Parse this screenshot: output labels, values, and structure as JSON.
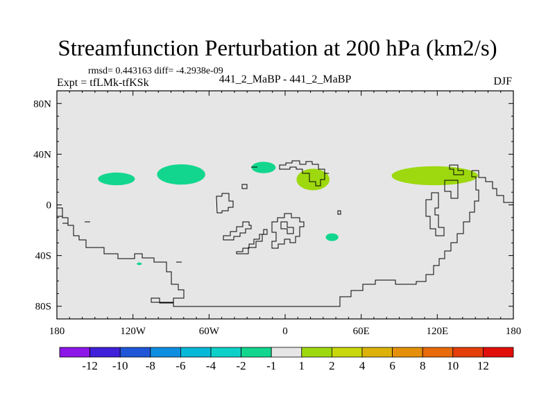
{
  "header": {
    "title": "Streamfunction Perturbation at 200 hPa (km2/s)",
    "stats": "rmsd= 0.443163 diff= -4.2938e-09",
    "expt": "Expt = tfLMk-tfKSk",
    "case": "441_2_MaBP - 441_2_MaBP",
    "season": "DJF"
  },
  "chart_data": {
    "type": "heatmap",
    "title": "Streamfunction Perturbation at 200 hPa (km2/s)",
    "units": "km2/s",
    "xlabel": "",
    "ylabel": "",
    "xlim": [
      -180,
      180
    ],
    "ylim": [
      -90,
      90
    ],
    "x_ticks": [
      {
        "value": -180,
        "label": "180"
      },
      {
        "value": -120,
        "label": "120W"
      },
      {
        "value": -60,
        "label": "60W"
      },
      {
        "value": 0,
        "label": "0"
      },
      {
        "value": 60,
        "label": "60E"
      },
      {
        "value": 120,
        "label": "120E"
      },
      {
        "value": 180,
        "label": "180"
      }
    ],
    "y_ticks": [
      {
        "value": 80,
        "label": "80N"
      },
      {
        "value": 40,
        "label": "40N"
      },
      {
        "value": 0,
        "label": "0"
      },
      {
        "value": -40,
        "label": "40S"
      },
      {
        "value": -80,
        "label": "80S"
      }
    ],
    "background": {
      "range": "-1 to 1",
      "color": "#e6e6e6"
    },
    "anomalies": [
      {
        "name": "north-pacific-low",
        "lon": -133,
        "lat": 20.5,
        "half_width_lon": 14.5,
        "half_height_lat": 5,
        "bin": "-2 to -1",
        "color": "#12d68d"
      },
      {
        "name": "north-america-low",
        "lon": -82,
        "lat": 24,
        "half_width_lon": 19,
        "half_height_lat": 8,
        "bin": "-2 to -1",
        "color": "#12d68d"
      },
      {
        "name": "north-atlantic-low",
        "lon": -17,
        "lat": 29.5,
        "half_width_lon": 9.5,
        "half_height_lat": 4.5,
        "bin": "-2 to -1",
        "color": "#12d68d"
      },
      {
        "name": "south-indian-low",
        "lon": 37,
        "lat": -25.5,
        "half_width_lon": 5,
        "half_height_lat": 3,
        "bin": "-2 to -1",
        "color": "#12d68d"
      },
      {
        "name": "south-pacific-low",
        "lon": -115,
        "lat": -46.5,
        "half_width_lon": 2,
        "half_height_lat": 1,
        "bin": "-2 to -1",
        "color": "#12d68d"
      },
      {
        "name": "north-africa-high",
        "lon": 22,
        "lat": 20,
        "half_width_lon": 13,
        "half_height_lat": 8.5,
        "bin": "1 to 2",
        "color": "#9ed80f"
      },
      {
        "name": "east-asia-high",
        "lon": 118,
        "lat": 23,
        "half_width_lon": 34,
        "half_height_lat": 7.5,
        "bin": "1 to 2",
        "color": "#9ed80f"
      }
    ],
    "colorbar": {
      "colors": [
        "#8c16e8",
        "#4020d8",
        "#1f56d8",
        "#0e8ee0",
        "#06b8d8",
        "#0ed0c8",
        "#12d68d",
        "#e6e6e6",
        "#9ed80f",
        "#c8d60c",
        "#dcb20a",
        "#e4900a",
        "#e86a0a",
        "#e43e0a",
        "#e20e0a"
      ],
      "labels": [
        "-12",
        "-10",
        "-8",
        "-6",
        "-4",
        "-2",
        "-1",
        "1",
        "2",
        "4",
        "6",
        "8",
        "10",
        "12"
      ]
    }
  }
}
